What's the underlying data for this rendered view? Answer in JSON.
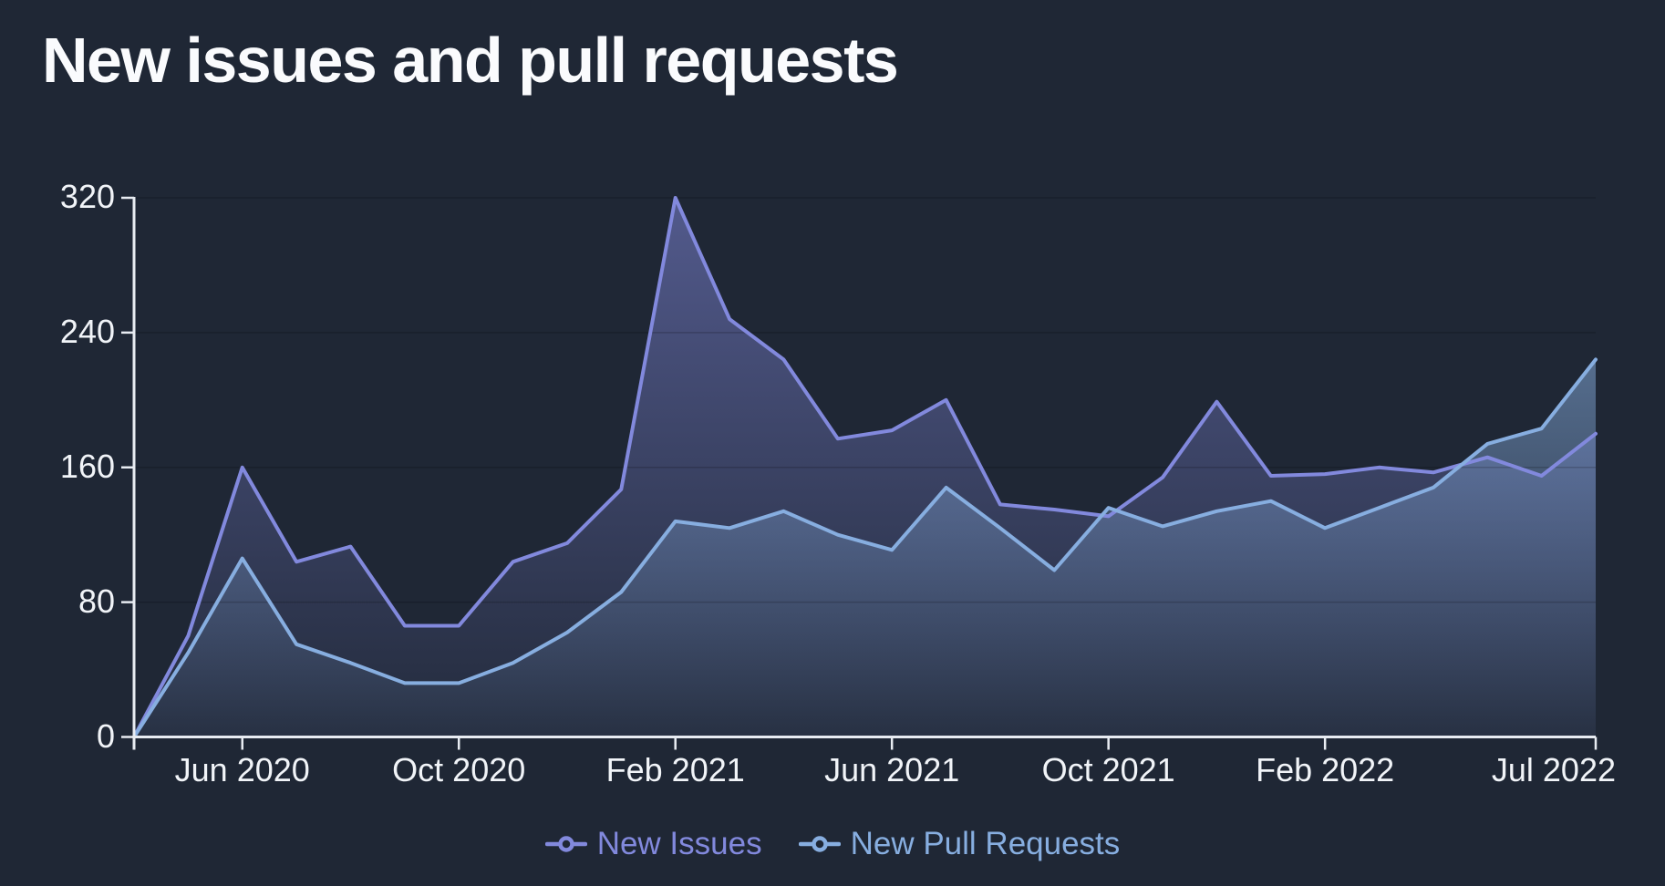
{
  "title": "New issues and pull requests",
  "colors": {
    "background": "#1F2735",
    "axis": "#E8ECF2",
    "label_text": "#F1F4F8",
    "gridline": "rgba(0,0,0,0.18)",
    "issues_purple": "#8289DD",
    "pull_requests_blue": "#87AEE0"
  },
  "legend": {
    "items": [
      {
        "label": "New Issues",
        "color": "#8289DD"
      },
      {
        "label": "New Pull Requests",
        "color": "#87AEE0"
      }
    ]
  },
  "chart_data": {
    "type": "area",
    "title": "New issues and pull requests",
    "x": [
      "Apr 2020",
      "May 2020",
      "Jun 2020",
      "Jul 2020",
      "Aug 2020",
      "Sep 2020",
      "Oct 2020",
      "Nov 2020",
      "Dec 2020",
      "Jan 2021",
      "Feb 2021",
      "Mar 2021",
      "Apr 2021",
      "May 2021",
      "Jun 2021",
      "Jul 2021",
      "Aug 2021",
      "Sep 2021",
      "Oct 2021",
      "Nov 2021",
      "Dec 2021",
      "Jan 2022",
      "Feb 2022",
      "Mar 2022",
      "Apr 2022",
      "May 2022",
      "Jun 2022",
      "Jul 2022"
    ],
    "series": [
      {
        "name": "New Issues",
        "color": "#8289DD",
        "values": [
          0,
          60,
          160,
          104,
          113,
          66,
          66,
          104,
          115,
          147,
          320,
          248,
          224,
          177,
          182,
          200,
          138,
          135,
          131,
          154,
          199,
          155,
          156,
          160,
          157,
          166,
          155,
          180
        ]
      },
      {
        "name": "New Pull Requests",
        "color": "#87AEE0",
        "values": [
          0,
          50,
          106,
          55,
          44,
          32,
          32,
          44,
          62,
          86,
          128,
          124,
          134,
          120,
          111,
          148,
          124,
          99,
          136,
          125,
          134,
          140,
          124,
          136,
          148,
          174,
          183,
          224
        ]
      }
    ],
    "ylim": [
      0,
      320
    ],
    "yticks": [
      0,
      80,
      160,
      240,
      320
    ],
    "xticks": [
      {
        "index": 2,
        "label": "Jun 2020"
      },
      {
        "index": 6,
        "label": "Oct 2020"
      },
      {
        "index": 10,
        "label": "Feb 2021"
      },
      {
        "index": 14,
        "label": "Jun 2021"
      },
      {
        "index": 18,
        "label": "Oct 2021"
      },
      {
        "index": 22,
        "label": "Feb 2022"
      },
      {
        "index": 27,
        "label": "Jul 2022"
      }
    ],
    "grid": "faint horizontal gridlines at y ticks",
    "legend_position": "bottom-center",
    "area_style": "vertical gradient fade per series, lines on top, no point markers"
  }
}
